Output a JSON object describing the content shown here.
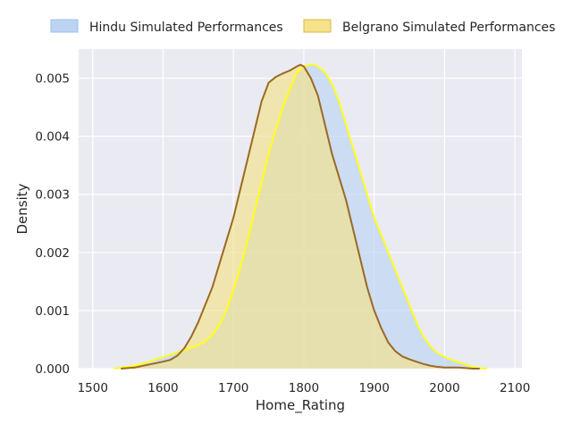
{
  "chart_data": {
    "type": "area",
    "chart_kind": "kde",
    "title": "",
    "xlabel": "Home_Rating",
    "ylabel": "Density",
    "xlim": [
      1480,
      2110
    ],
    "ylim": [
      0,
      0.0055
    ],
    "grid": true,
    "legend_position": "top",
    "x_ticks": [
      1500,
      1600,
      1700,
      1800,
      1900,
      2000,
      2100
    ],
    "y_ticks": [
      0,
      0.001,
      0.002,
      0.003,
      0.004,
      0.005
    ],
    "y_tick_labels": [
      "0.000",
      "0.001",
      "0.002",
      "0.003",
      "0.004",
      "0.005"
    ],
    "background_color": "#eaeaf2",
    "series": [
      {
        "name": "Hindu Simulated Performances",
        "fill_color": "#bcd4f2",
        "line_color": "#ffff1a",
        "x": [
          1530,
          1560,
          1580,
          1600,
          1620,
          1640,
          1650,
          1660,
          1670,
          1680,
          1690,
          1700,
          1710,
          1720,
          1730,
          1740,
          1750,
          1760,
          1770,
          1780,
          1790,
          1800,
          1810,
          1815,
          1820,
          1830,
          1840,
          1850,
          1860,
          1870,
          1880,
          1890,
          1900,
          1910,
          1920,
          1930,
          1940,
          1950,
          1960,
          1970,
          1980,
          1990,
          2000,
          2010,
          2020,
          2030,
          2040,
          2050,
          2060
        ],
        "y": [
          0.0,
          5e-05,
          0.00012,
          0.0002,
          0.00028,
          0.00036,
          0.0004,
          0.00047,
          0.00058,
          0.00075,
          0.001,
          0.00135,
          0.00175,
          0.0022,
          0.0027,
          0.0032,
          0.0037,
          0.0041,
          0.0045,
          0.0048,
          0.0051,
          0.0052,
          0.00523,
          0.00524,
          0.0052,
          0.0051,
          0.0049,
          0.0046,
          0.0042,
          0.0038,
          0.0034,
          0.003,
          0.0026,
          0.0023,
          0.002,
          0.0017,
          0.0014,
          0.0011,
          0.0008,
          0.00055,
          0.00038,
          0.00027,
          0.0002,
          0.00015,
          0.00011,
          7e-05,
          3e-05,
          1e-05,
          0.0
        ]
      },
      {
        "name": "Belgrano Simulated Performances",
        "fill_color": "#f5e28a",
        "line_color": "#9a6a22",
        "x": [
          1540,
          1560,
          1580,
          1600,
          1610,
          1620,
          1630,
          1640,
          1650,
          1660,
          1670,
          1680,
          1690,
          1700,
          1710,
          1720,
          1730,
          1740,
          1750,
          1760,
          1770,
          1780,
          1790,
          1795,
          1800,
          1810,
          1820,
          1830,
          1840,
          1850,
          1860,
          1870,
          1880,
          1890,
          1900,
          1910,
          1920,
          1930,
          1940,
          1950,
          1960,
          1970,
          1980,
          1990,
          2000,
          2010,
          2020,
          2030,
          2040,
          2050
        ],
        "y": [
          0.0,
          2e-05,
          7e-05,
          0.00012,
          0.00015,
          0.00022,
          0.00035,
          0.00055,
          0.0008,
          0.0011,
          0.0014,
          0.0018,
          0.0022,
          0.0026,
          0.0031,
          0.0036,
          0.0041,
          0.0046,
          0.00492,
          0.00502,
          0.00508,
          0.00513,
          0.0052,
          0.00523,
          0.0052,
          0.005,
          0.0047,
          0.0042,
          0.0037,
          0.0033,
          0.0029,
          0.0024,
          0.0019,
          0.0014,
          0.001,
          0.0007,
          0.00045,
          0.0003,
          0.00021,
          0.00016,
          0.00012,
          8e-05,
          5e-05,
          3e-05,
          2e-05,
          2e-05,
          2e-05,
          1e-05,
          0.0,
          0.0
        ]
      }
    ]
  }
}
